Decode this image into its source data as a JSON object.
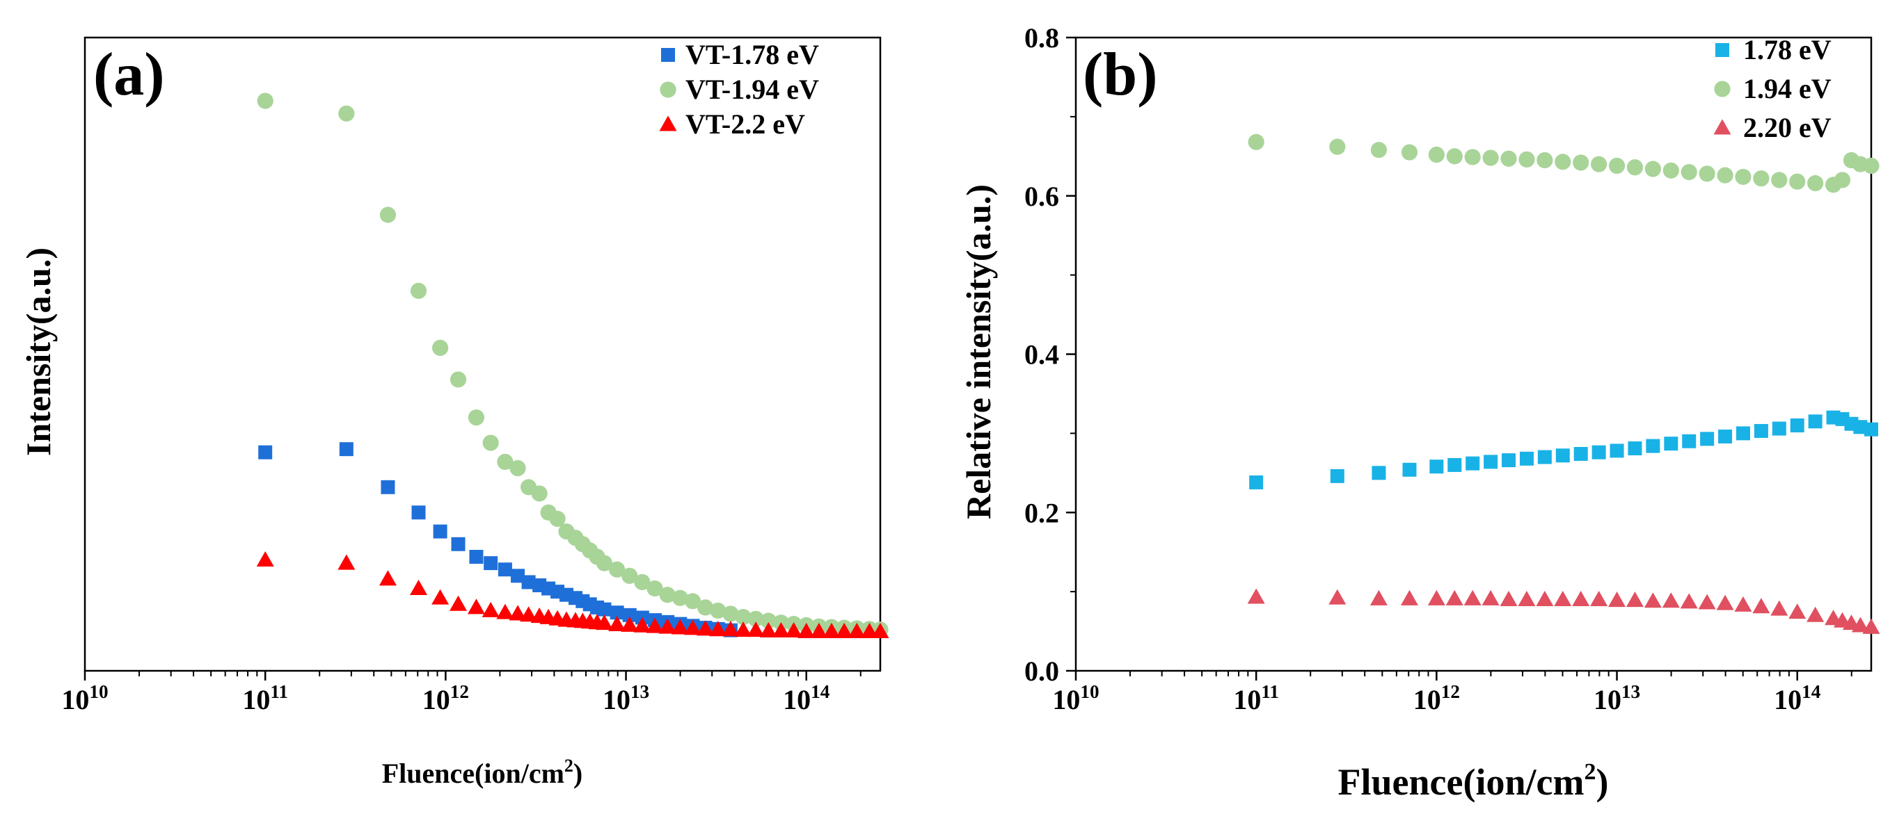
{
  "chart_data": [
    {
      "panel_label": "(a)",
      "type": "scatter",
      "xscale": "log",
      "xlim_log10": [
        10,
        14.41
      ],
      "xlabel_main": "Fluence(ion/cm",
      "xlabel_sup": "2",
      "xlabel_close": ")",
      "ylabel": "Intensity(a.u.)",
      "ylim": [
        0,
        1
      ],
      "y_ticks_shown": false,
      "x_ticks": [
        {
          "exp": 10,
          "base": "10",
          "sup": "10"
        },
        {
          "exp": 11,
          "base": "10",
          "sup": "11"
        },
        {
          "exp": 12,
          "base": "10",
          "sup": "12"
        },
        {
          "exp": 13,
          "base": "10",
          "sup": "13"
        },
        {
          "exp": 14,
          "base": "10",
          "sup": "14"
        }
      ],
      "legend_position": "top-right",
      "series": [
        {
          "name": "VT-1.78 eV",
          "marker": "square",
          "color": "#1f6fd9",
          "x_log10": [
            11.0,
            11.45,
            11.68,
            11.85,
            11.97,
            12.07,
            12.17,
            12.25,
            12.33,
            12.4,
            12.46,
            12.52,
            12.57,
            12.62,
            12.67,
            12.72,
            12.76,
            12.8,
            12.84,
            12.88,
            12.95,
            13.02,
            13.09,
            13.16,
            13.23,
            13.3,
            13.37,
            13.44,
            13.51,
            13.58
          ],
          "values": [
            0.345,
            0.35,
            0.29,
            0.25,
            0.22,
            0.2,
            0.18,
            0.17,
            0.16,
            0.15,
            0.14,
            0.135,
            0.13,
            0.125,
            0.12,
            0.115,
            0.11,
            0.105,
            0.1,
            0.097,
            0.092,
            0.088,
            0.084,
            0.08,
            0.077,
            0.074,
            0.071,
            0.068,
            0.066,
            0.064
          ]
        },
        {
          "name": "VT-1.94 eV",
          "marker": "circle",
          "color": "#a8d498",
          "x_log10": [
            11.0,
            11.45,
            11.68,
            11.85,
            11.97,
            12.07,
            12.17,
            12.25,
            12.33,
            12.4,
            12.46,
            12.52,
            12.57,
            12.62,
            12.67,
            12.72,
            12.76,
            12.8,
            12.84,
            12.88,
            12.95,
            13.02,
            13.09,
            13.16,
            13.23,
            13.3,
            13.37,
            13.44,
            13.51,
            13.58,
            13.65,
            13.72,
            13.79,
            13.86,
            13.93,
            14.0,
            14.07,
            14.14,
            14.21,
            14.28,
            14.35,
            14.41
          ],
          "values": [
            0.9,
            0.88,
            0.72,
            0.6,
            0.51,
            0.46,
            0.4,
            0.36,
            0.33,
            0.32,
            0.29,
            0.28,
            0.25,
            0.24,
            0.22,
            0.21,
            0.2,
            0.19,
            0.18,
            0.17,
            0.16,
            0.15,
            0.14,
            0.13,
            0.12,
            0.115,
            0.11,
            0.1,
            0.095,
            0.09,
            0.085,
            0.082,
            0.079,
            0.076,
            0.074,
            0.072,
            0.07,
            0.069,
            0.068,
            0.067,
            0.066,
            0.065
          ]
        },
        {
          "name": "VT-2.2 eV",
          "marker": "triangle",
          "color": "#ff0000",
          "x_log10": [
            11.0,
            11.45,
            11.68,
            11.85,
            11.97,
            12.07,
            12.17,
            12.25,
            12.33,
            12.4,
            12.46,
            12.52,
            12.57,
            12.62,
            12.67,
            12.72,
            12.76,
            12.8,
            12.84,
            12.88,
            12.95,
            13.02,
            13.09,
            13.16,
            13.23,
            13.3,
            13.37,
            13.44,
            13.51,
            13.58,
            13.65,
            13.72,
            13.79,
            13.86,
            13.93,
            14.0,
            14.07,
            14.14,
            14.21,
            14.28,
            14.35,
            14.41
          ],
          "values": [
            0.175,
            0.17,
            0.145,
            0.13,
            0.115,
            0.105,
            0.1,
            0.095,
            0.092,
            0.09,
            0.088,
            0.086,
            0.084,
            0.082,
            0.08,
            0.079,
            0.078,
            0.077,
            0.076,
            0.075,
            0.073,
            0.072,
            0.071,
            0.07,
            0.069,
            0.068,
            0.067,
            0.066,
            0.065,
            0.065,
            0.064,
            0.064,
            0.063,
            0.063,
            0.063,
            0.062,
            0.062,
            0.062,
            0.062,
            0.062,
            0.062,
            0.062
          ]
        }
      ]
    },
    {
      "panel_label": "(b)",
      "type": "scatter",
      "xscale": "log",
      "xlim_log10": [
        10,
        14.41
      ],
      "xlabel_main": "Fluence(ion/cm",
      "xlabel_sup": "2",
      "xlabel_close": ")",
      "ylabel": "Relative intensity(a.u.)",
      "ylim": [
        0,
        0.8
      ],
      "y_ticks": [
        "0.0",
        "0.2",
        "0.4",
        "0.6",
        "0.8"
      ],
      "x_ticks": [
        {
          "exp": 10,
          "base": "10",
          "sup": "10"
        },
        {
          "exp": 11,
          "base": "10",
          "sup": "11"
        },
        {
          "exp": 12,
          "base": "10",
          "sup": "12"
        },
        {
          "exp": 13,
          "base": "10",
          "sup": "13"
        },
        {
          "exp": 14,
          "base": "10",
          "sup": "14"
        }
      ],
      "legend_position": "top-right",
      "series": [
        {
          "name": "1.78 eV",
          "marker": "square",
          "color": "#19b2e6",
          "x_log10": [
            11.0,
            11.45,
            11.68,
            11.85,
            12.0,
            12.1,
            12.2,
            12.3,
            12.4,
            12.5,
            12.6,
            12.7,
            12.8,
            12.9,
            13.0,
            13.1,
            13.2,
            13.3,
            13.4,
            13.5,
            13.6,
            13.7,
            13.8,
            13.9,
            14.0,
            14.1,
            14.2,
            14.25,
            14.3,
            14.35,
            14.41
          ],
          "values": [
            0.238,
            0.246,
            0.25,
            0.254,
            0.258,
            0.26,
            0.262,
            0.264,
            0.266,
            0.268,
            0.27,
            0.272,
            0.274,
            0.276,
            0.278,
            0.281,
            0.284,
            0.287,
            0.29,
            0.293,
            0.296,
            0.3,
            0.303,
            0.306,
            0.31,
            0.315,
            0.32,
            0.318,
            0.312,
            0.308,
            0.305
          ]
        },
        {
          "name": "1.94 eV",
          "marker": "circle",
          "color": "#a8d498",
          "x_log10": [
            11.0,
            11.45,
            11.68,
            11.85,
            12.0,
            12.1,
            12.2,
            12.3,
            12.4,
            12.5,
            12.6,
            12.7,
            12.8,
            12.9,
            13.0,
            13.1,
            13.2,
            13.3,
            13.4,
            13.5,
            13.6,
            13.7,
            13.8,
            13.9,
            14.0,
            14.1,
            14.2,
            14.25,
            14.3,
            14.35,
            14.41
          ],
          "values": [
            0.668,
            0.662,
            0.658,
            0.655,
            0.652,
            0.65,
            0.649,
            0.648,
            0.647,
            0.646,
            0.645,
            0.643,
            0.642,
            0.64,
            0.638,
            0.636,
            0.634,
            0.632,
            0.63,
            0.628,
            0.626,
            0.624,
            0.622,
            0.62,
            0.618,
            0.616,
            0.614,
            0.62,
            0.645,
            0.64,
            0.638
          ]
        },
        {
          "name": "2.20 eV",
          "marker": "triangle",
          "color": "#e05060",
          "x_log10": [
            11.0,
            11.45,
            11.68,
            11.85,
            12.0,
            12.1,
            12.2,
            12.3,
            12.4,
            12.5,
            12.6,
            12.7,
            12.8,
            12.9,
            13.0,
            13.1,
            13.2,
            13.3,
            13.4,
            13.5,
            13.6,
            13.7,
            13.8,
            13.9,
            14.0,
            14.1,
            14.2,
            14.25,
            14.3,
            14.35,
            14.41
          ],
          "values": [
            0.093,
            0.092,
            0.091,
            0.091,
            0.091,
            0.091,
            0.091,
            0.091,
            0.09,
            0.09,
            0.09,
            0.09,
            0.09,
            0.09,
            0.089,
            0.089,
            0.088,
            0.088,
            0.087,
            0.086,
            0.085,
            0.083,
            0.081,
            0.078,
            0.074,
            0.07,
            0.066,
            0.063,
            0.06,
            0.057,
            0.055
          ]
        }
      ]
    }
  ]
}
